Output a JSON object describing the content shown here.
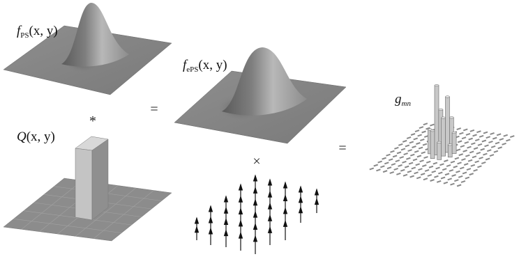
{
  "labels": {
    "f_ps": {
      "symbol": "f",
      "subscript": "PS",
      "args": "(x, y)"
    },
    "q": {
      "symbol": "Q",
      "args": "(x, y)"
    },
    "f_eps": {
      "symbol": "f",
      "subscript": "ePS",
      "args": "(x, y)"
    },
    "g": {
      "symbol": "g",
      "subscript": "mn"
    }
  },
  "operators": {
    "convolve": "*",
    "equals_top": "=",
    "times": "×",
    "equals_right": "="
  }
}
